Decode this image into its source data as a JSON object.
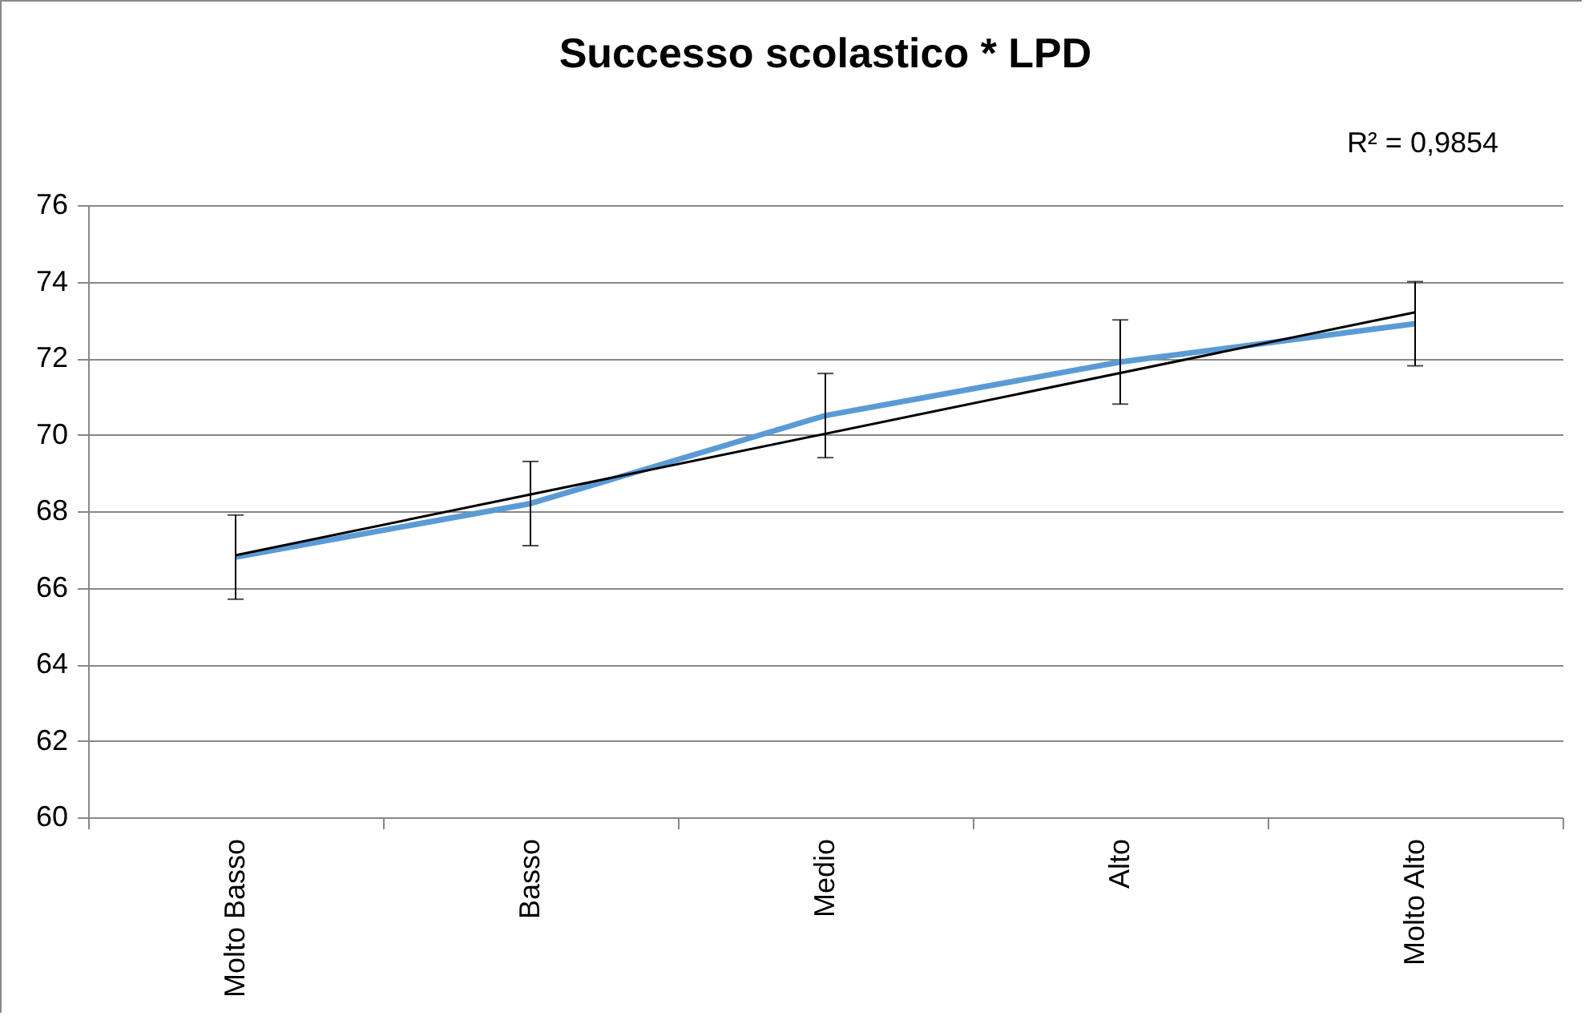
{
  "chart_data": {
    "type": "line",
    "title": "Successo scolastico  * LPD",
    "annotations": [
      "R² = 0,9854"
    ],
    "categories": [
      "Molto Basso",
      "Basso",
      "Medio",
      "Alto",
      "Molto Alto"
    ],
    "series": [
      {
        "color": "#5b9bd5",
        "values": [
          66.8,
          68.2,
          70.5,
          71.9,
          72.9
        ],
        "errors": [
          1.1,
          1.1,
          1.1,
          1.1,
          1.1
        ]
      },
      {
        "type": "line",
        "color": "#000000",
        "x": [
          "Molto Basso",
          "Molto Alto"
        ],
        "values": [
          66.85,
          73.2
        ]
      }
    ],
    "ylim": [
      60,
      76
    ],
    "yticks": [
      60,
      62,
      64,
      66,
      68,
      70,
      72,
      74,
      76
    ],
    "grid": "y",
    "marker": "none"
  }
}
